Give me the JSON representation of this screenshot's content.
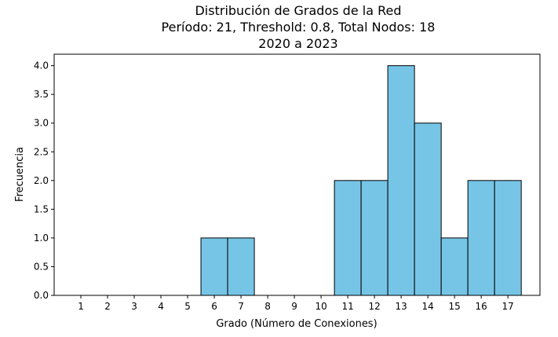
{
  "chart_data": {
    "type": "bar",
    "title_lines": [
      "Distribución de Grados de la Red",
      "Período: 21, Threshold: 0.8, Total Nodos: 18",
      "2020 a 2023"
    ],
    "xlabel": "Grado (Número de Conexiones)",
    "ylabel": "Frecuencia",
    "categories": [
      "1",
      "2",
      "3",
      "4",
      "5",
      "6",
      "7",
      "8",
      "9",
      "10",
      "11",
      "12",
      "13",
      "14",
      "15",
      "16",
      "17"
    ],
    "values": [
      0,
      0,
      0,
      0,
      0,
      1,
      1,
      0,
      0,
      0,
      2,
      2,
      4,
      3,
      1,
      2,
      2
    ],
    "yticks": [
      "0.0",
      "0.5",
      "1.0",
      "1.5",
      "2.0",
      "2.5",
      "3.0",
      "3.5",
      "4.0"
    ],
    "ylim": [
      0,
      4.2
    ],
    "xlim": [
      0,
      18.2
    ],
    "grid": false,
    "bar_color": "#76c5e6",
    "edge_color": "#000000"
  }
}
